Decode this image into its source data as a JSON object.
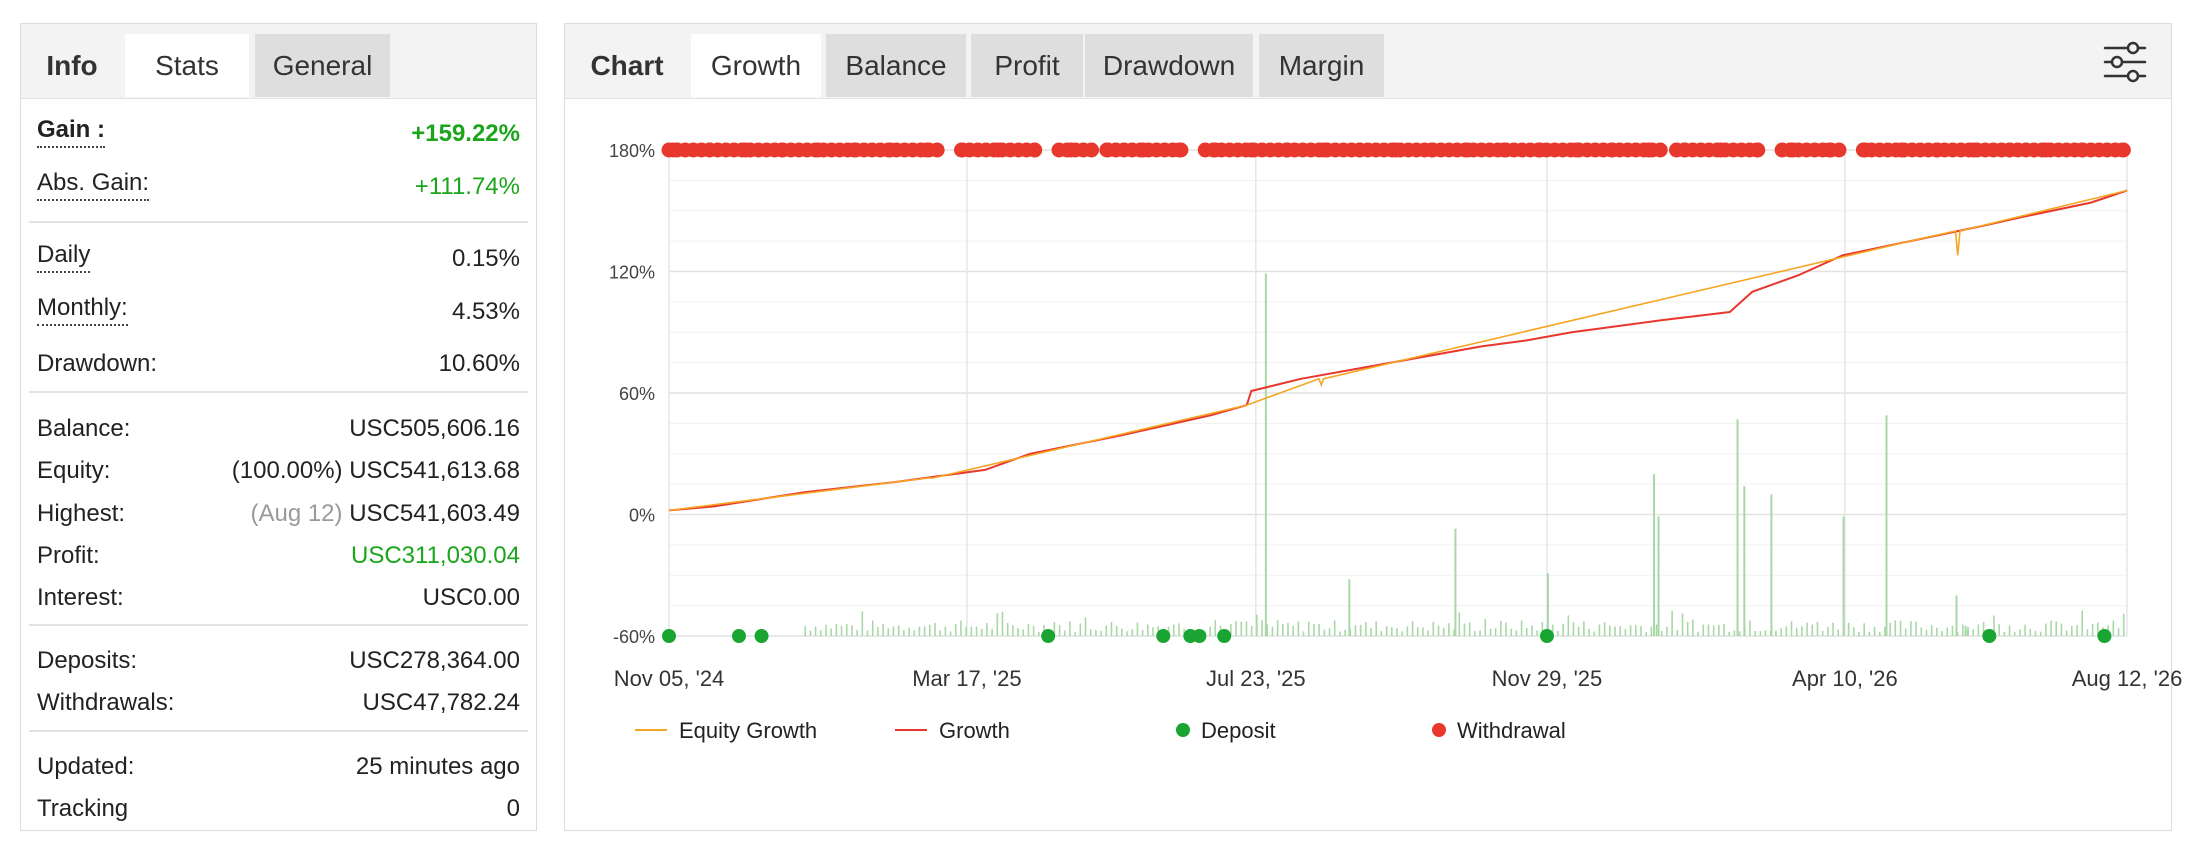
{
  "stats_panel": {
    "tabs": [
      {
        "label": "Info"
      },
      {
        "label": "Stats"
      },
      {
        "label": "General"
      }
    ],
    "rows": {
      "gain": {
        "label": "Gain :",
        "value": "+159.22%"
      },
      "abs_gain": {
        "label": "Abs. Gain:",
        "value": "+111.74%"
      },
      "daily": {
        "label": "Daily",
        "value": "0.15%"
      },
      "monthly": {
        "label": "Monthly:",
        "value": "4.53%"
      },
      "drawdown": {
        "label": "Drawdown:",
        "value": "10.60%"
      },
      "balance": {
        "label": "Balance:",
        "value": "USC505,606.16"
      },
      "equity": {
        "label": "Equity:",
        "prefix": "(100.00%)",
        "value": "USC541,613.68"
      },
      "highest": {
        "label": "Highest:",
        "prefix": "(Aug 12)",
        "value": "USC541,603.49"
      },
      "profit": {
        "label": "Profit:",
        "value": "USC311,030.04"
      },
      "interest": {
        "label": "Interest:",
        "value": "USC0.00"
      },
      "deposits": {
        "label": "Deposits:",
        "value": "USC278,364.00"
      },
      "withdrawals": {
        "label": "Withdrawals:",
        "value": "USC47,782.24"
      },
      "updated": {
        "label": "Updated:",
        "value": "25 minutes ago"
      },
      "tracking": {
        "label": "Tracking",
        "value": "0"
      }
    },
    "colors": {
      "positive": "#1aa51a"
    }
  },
  "chart_panel": {
    "tabs": [
      {
        "label": "Chart"
      },
      {
        "label": "Growth"
      },
      {
        "label": "Balance"
      },
      {
        "label": "Profit"
      },
      {
        "label": "Drawdown"
      },
      {
        "label": "Margin"
      }
    ],
    "active_tab": "Growth",
    "settings_icon": "sliders-icon"
  },
  "chart_data": {
    "type": "line",
    "title": "",
    "xlabel": "",
    "ylabel": "",
    "ylim": [
      -60,
      180
    ],
    "y_ticks": [
      -60,
      0,
      60,
      120,
      180
    ],
    "y_tick_labels": [
      "-60%",
      "0%",
      "60%",
      "120%",
      "180%"
    ],
    "x_tick_labels": [
      "Nov 05, '24",
      "Mar 17, '25",
      "Jul 23, '25",
      "Nov 29, '25",
      "Apr 10, '26",
      "Aug 12, '26"
    ],
    "x_ticks": [
      0,
      132,
      260,
      389,
      521,
      646
    ],
    "x_range": [
      0,
      646
    ],
    "grid": true,
    "legend_position": "bottom",
    "series": [
      {
        "name": "Growth",
        "color": "#e8372d",
        "x": [
          0,
          20,
          60,
          100,
          140,
          160,
          200,
          240,
          256,
          258,
          280,
          320,
          360,
          380,
          400,
          440,
          470,
          480,
          500,
          520,
          550,
          580,
          600,
          630,
          646
        ],
        "y": [
          2,
          4,
          11,
          16,
          22,
          30,
          39,
          49,
          54,
          61,
          67,
          75,
          83,
          86,
          90,
          96,
          100,
          110,
          118,
          128,
          135,
          142,
          147,
          154,
          160
        ]
      },
      {
        "name": "Equity Growth",
        "color": "#f5a623",
        "x": [
          0,
          100,
          115,
          116,
          117,
          256,
          288,
          289,
          290,
          550,
          570,
          571,
          572,
          646
        ],
        "y": [
          2,
          16,
          18,
          18,
          18,
          54,
          67,
          64,
          67,
          135,
          140,
          128,
          140,
          160
        ]
      },
      {
        "name": "Deposit",
        "color": "#1aa533",
        "x": [
          0,
          31,
          41,
          168,
          219,
          231,
          235,
          246,
          389,
          585,
          636
        ],
        "y": [
          -60,
          -60,
          -60,
          -60,
          -60,
          -60,
          -60,
          -60,
          -60,
          -60,
          -60
        ]
      },
      {
        "name": "Withdrawal",
        "color": "#e8372d",
        "x": [
          2,
          18,
          34,
          50,
          66,
          82,
          98,
          114,
          130,
          146,
          162,
          178,
          194,
          210,
          226,
          242,
          258,
          274,
          290,
          306,
          322,
          338,
          354,
          370,
          386,
          402,
          418,
          434,
          450,
          466,
          482,
          498,
          514,
          530,
          546,
          562,
          578,
          594,
          610,
          626,
          644
        ],
        "y": [
          180,
          180,
          180,
          180,
          180,
          180,
          180,
          180,
          180,
          180,
          180,
          180,
          180,
          180,
          180,
          180,
          180,
          180,
          180,
          180,
          180,
          180,
          180,
          180,
          180,
          180,
          180,
          180,
          180,
          180,
          180,
          180,
          180,
          180,
          180,
          180,
          180,
          180,
          180,
          180,
          180
        ]
      }
    ],
    "bars": {
      "color": "#a9d8a6",
      "x": [
        264,
        301,
        348,
        389,
        436,
        438,
        473,
        476,
        488,
        520,
        539,
        575,
        574,
        570
      ],
      "y": [
        119,
        -32,
        -7,
        -29,
        20,
        -1,
        47,
        14,
        10,
        -1,
        49,
        -57,
        -55,
        -40
      ]
    },
    "legend": [
      {
        "name": "Equity Growth",
        "color": "#f5a623",
        "marker": "line"
      },
      {
        "name": "Growth",
        "color": "#e8372d",
        "marker": "line"
      },
      {
        "name": "Deposit",
        "color": "#1aa533",
        "marker": "dot"
      },
      {
        "name": "Withdrawal",
        "color": "#e8372d",
        "marker": "dot"
      }
    ]
  }
}
